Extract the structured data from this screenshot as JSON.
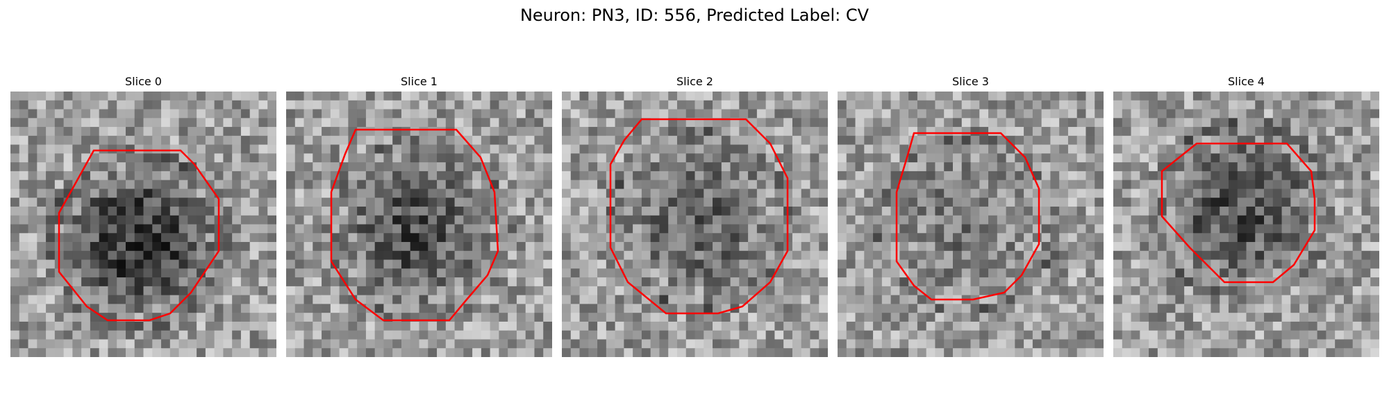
{
  "figure": {
    "title": "Neuron: PN3, ID: 556, Predicted Label: CV"
  },
  "contour_color": "#ff0000",
  "image_style": "grayscale-noise-tile",
  "slices": [
    {
      "title": "Slice 0",
      "seed": 11,
      "blob_dark": 0.45
    },
    {
      "title": "Slice 1",
      "seed": 23,
      "blob_dark": 0.35
    },
    {
      "title": "Slice 2",
      "seed": 37,
      "blob_dark": 0.25
    },
    {
      "title": "Slice 3",
      "seed": 41,
      "blob_dark": 0.15
    },
    {
      "title": "Slice 4",
      "seed": 59,
      "blob_dark": 0.35
    }
  ]
}
